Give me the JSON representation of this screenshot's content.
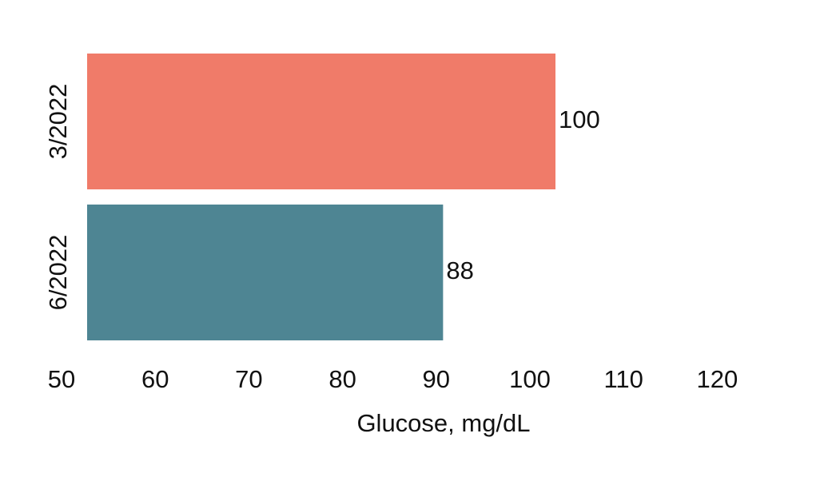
{
  "chart_data": {
    "type": "bar",
    "orientation": "horizontal",
    "categories": [
      "3/2022",
      "6/2022"
    ],
    "values": [
      100,
      88
    ],
    "colors": [
      "#f07b69",
      "#4e8593"
    ],
    "x_label": "Glucose, mg/dL",
    "xlim": [
      50,
      125
    ],
    "xticks": [
      50,
      60,
      70,
      80,
      90,
      100,
      110,
      120
    ],
    "grid": false
  }
}
